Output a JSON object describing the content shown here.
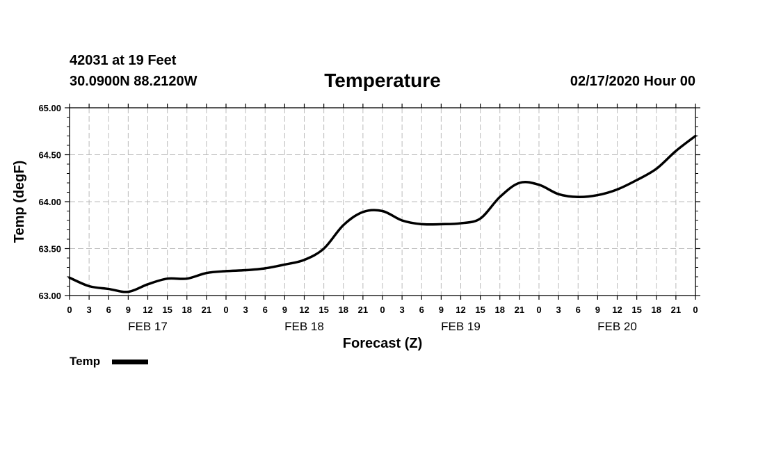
{
  "header": {
    "station": "42031 at 19 Feet",
    "coords": "30.0900N 88.2120W",
    "title": "Temperature",
    "datetime": "02/17/2020 Hour 00"
  },
  "chart_data": {
    "type": "line",
    "title": "Temperature",
    "xlabel": "Forecast (Z)",
    "ylabel": "Temp (degF)",
    "ylim": [
      63.0,
      65.0
    ],
    "yticks": [
      "63.00",
      "63.50",
      "64.00",
      "64.50",
      "65.00"
    ],
    "xlim": [
      0,
      96
    ],
    "hour_labels": [
      "0",
      "3",
      "6",
      "9",
      "12",
      "15",
      "18",
      "21",
      "0",
      "3",
      "6",
      "9",
      "12",
      "15",
      "18",
      "21",
      "0",
      "3",
      "6",
      "9",
      "12",
      "15",
      "18",
      "21",
      "0",
      "3",
      "6",
      "9",
      "12",
      "15",
      "18",
      "21",
      "0"
    ],
    "day_labels": [
      "FEB 17",
      "FEB 18",
      "FEB 19",
      "FEB 20"
    ],
    "grid": true,
    "legend": "bottom-left",
    "series": [
      {
        "name": "Temp",
        "color": "#000000",
        "x": [
          0,
          3,
          6,
          9,
          12,
          15,
          18,
          21,
          24,
          27,
          30,
          33,
          36,
          39,
          42,
          45,
          48,
          51,
          54,
          57,
          60,
          63,
          66,
          69,
          72,
          75,
          78,
          81,
          84,
          87,
          90,
          93,
          96
        ],
        "values": [
          63.19,
          63.1,
          63.07,
          63.04,
          63.12,
          63.18,
          63.18,
          63.24,
          63.26,
          63.27,
          63.29,
          63.33,
          63.38,
          63.5,
          63.75,
          63.89,
          63.9,
          63.8,
          63.76,
          63.76,
          63.77,
          63.82,
          64.05,
          64.2,
          64.18,
          64.08,
          64.05,
          64.07,
          64.13,
          64.23,
          64.35,
          64.54,
          64.7
        ]
      }
    ]
  }
}
